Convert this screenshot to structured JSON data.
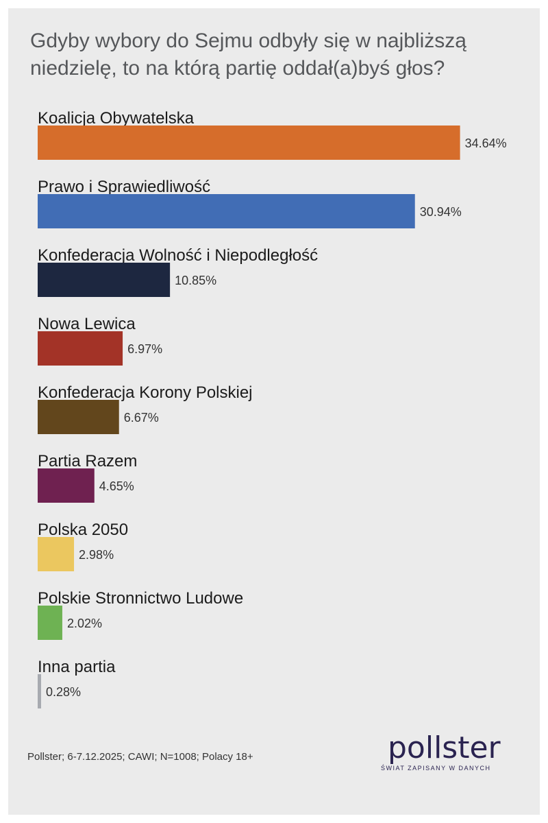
{
  "chart_data": {
    "type": "bar",
    "orientation": "horizontal",
    "title": "Gdyby wybory do Sejmu odbyły się w najbliższą niedzielę, to na którą partię oddał(a)byś głos?",
    "categories": [
      "Koalicja Obywatelska",
      "Prawo i Sprawiedliwość",
      "Konfederacja Wolność i Niepodległość",
      "Nowa Lewica",
      "Konfederacja Korony Polskiej",
      "Partia Razem",
      "Polska 2050",
      "Polskie Stronnictwo Ludowe",
      "Inna partia"
    ],
    "values": [
      34.64,
      30.94,
      10.85,
      6.97,
      6.67,
      4.65,
      2.98,
      2.02,
      0.28
    ],
    "value_labels": [
      "34.64%",
      "30.94%",
      "10.85%",
      "6.97%",
      "6.67%",
      "4.65%",
      "2.98%",
      "2.02%",
      "0.28%"
    ],
    "colors": [
      "#d66d2b",
      "#416db5",
      "#1d2740",
      "#a33327",
      "#62461c",
      "#6f2150",
      "#ebc75f",
      "#6eb253",
      "#a7aab0"
    ],
    "unit": "%",
    "grid": false,
    "legend": "none"
  },
  "footer": "Pollster; 6-7.12.2025; CAWI; N=1008; Polacy 18+",
  "logo": {
    "word": "pollster",
    "tagline": "ŚWIAT ZAPISANY W DANYCH",
    "bar_colors": [
      "#2a2350",
      "#c0248b"
    ]
  }
}
